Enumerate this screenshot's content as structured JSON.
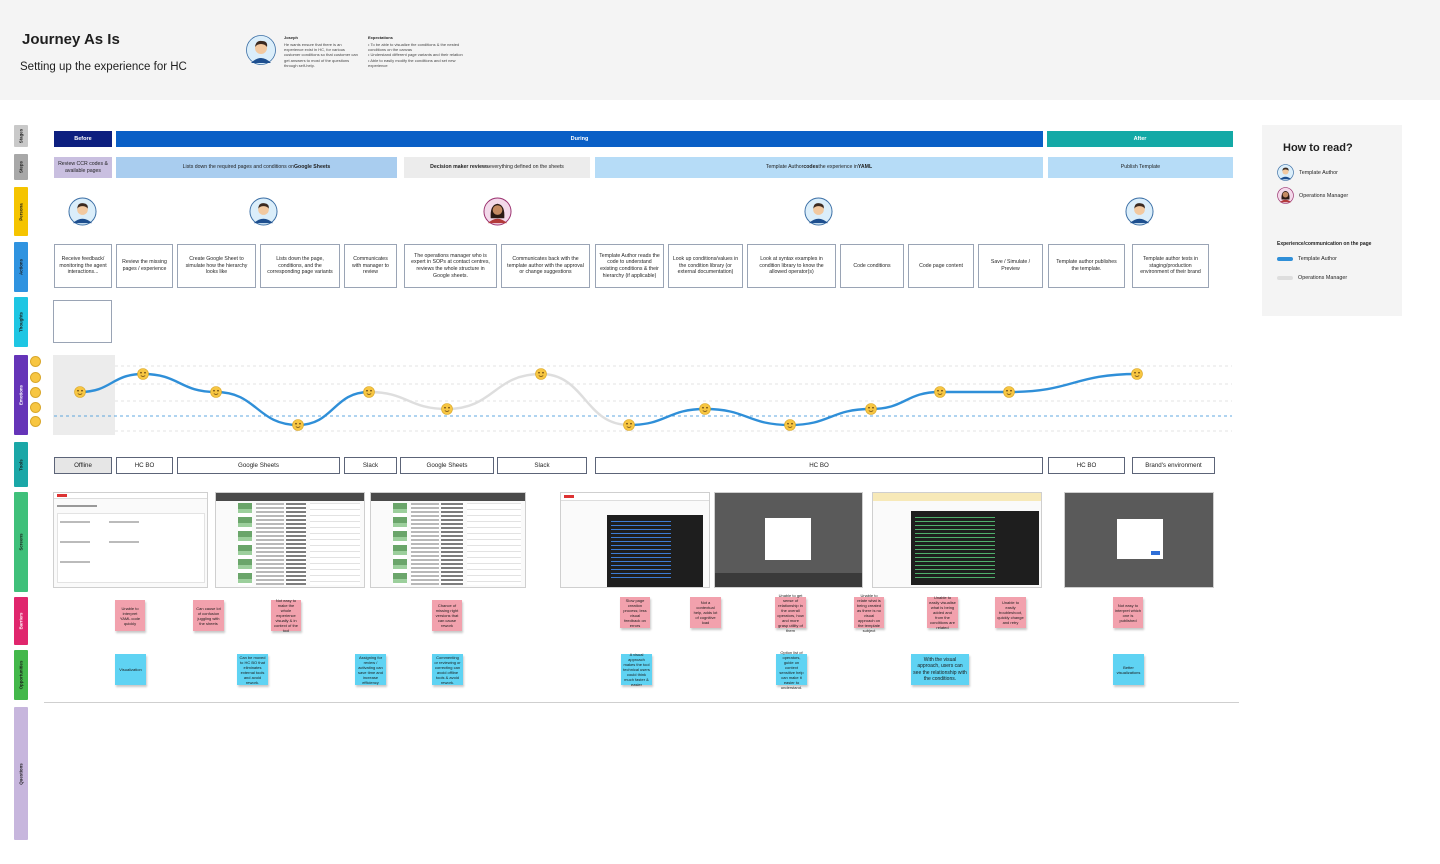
{
  "header": {
    "title": "Journey As Is",
    "subtitle": "Setting up the experience for HC",
    "persona_name": "Joseph",
    "persona_desc": "He wants ensure that there is an experience exist in HC, for various customer conditions so that customer can get answers to most of the questions through self-help.",
    "expectations_title": "Expectations",
    "expectations": [
      "To be able to visualize the conditions & the nested conditions on the canvas",
      "Understand different page variants and their relation",
      "Able to easily modify the conditions and set new experience"
    ]
  },
  "lanes": [
    {
      "label": "Stages",
      "color": "#c9c9c9"
    },
    {
      "label": "Steps",
      "color": "#a8a8a8"
    },
    {
      "label": "Persona",
      "color": "#f5c400"
    },
    {
      "label": "Actions",
      "color": "#2f93e0"
    },
    {
      "label": "Thoughts",
      "color": "#1ec6e3"
    },
    {
      "label": "Emotions",
      "color": "#6534b8"
    },
    {
      "label": "Tools",
      "color": "#1aa7a7"
    },
    {
      "label": "Screens",
      "color": "#3fc07a"
    },
    {
      "label": "Barriers",
      "color": "#e0266d"
    },
    {
      "label": "Opportunities",
      "color": "#43b84a"
    },
    {
      "label": "Questions",
      "color": "#c7b6dd"
    }
  ],
  "phases": [
    {
      "label": "Before",
      "color": "#0d1f7f"
    },
    {
      "label": "During",
      "color": "#0a5fc6"
    },
    {
      "label": "After",
      "color": "#14a9a6"
    }
  ],
  "steps": [
    {
      "text": "Review CCR codes & available pages"
    },
    {
      "pre": "",
      "bold": "",
      "post": "Lists down the required pages and conditions on ",
      "bold2": "Google Sheets"
    },
    {
      "pre": "",
      "bold": "Decision maker reviews",
      "post": " everything defined on the sheets",
      "bold2": ""
    },
    {
      "pre": "Template Author ",
      "bold": "codes",
      "post": " the experience in ",
      "bold2": "YAML"
    },
    {
      "text": "Publish Template"
    }
  ],
  "actions": [
    "Receive feedback/ monitoring the agent interactions...",
    "Review the missing pages / experience",
    "Create Google Sheet to simulate how the hierarchy looks like",
    "Lists down the page, conditions, and the corresponding page variants",
    "Communicates with manager to review",
    "The operations manager who is expert in SOPs at contact centres, reviews the whole structure in Google sheets.",
    "Communicates back with the template author with the approval or change suggestions",
    "Template Author reads the code to understand existing conditions & their hierarchy (if applicable)",
    "Look up conditions/values in the condition library (or external documentation)",
    "Look at syntax examples in condition library to know the allowed operator(s)",
    "Code conditions",
    "Code page content",
    "Save / Simulate / Preview",
    "Template author publishes the template.",
    "Template author tests in staging/production environment of their brand"
  ],
  "tools": [
    "Offline",
    "HC BO",
    "Google Sheets",
    "Slack",
    "Google Sheets",
    "Slack",
    "HC BO",
    "HC BO",
    "Brand's environment"
  ],
  "barriers": [
    "Unable to interpret YAML code quickly",
    "Can cause lot of confusion juggling with the sheets",
    "Not easy to make the whole experience visually & in context of the tool",
    "Chance of missing right versions that can cause rework",
    "Slow page creation process; less visual feedback on errors",
    "Not a contextual help, adds lot of cognitive load",
    "Unable to get sense of relationship in the overall operators, how and more grasp utility of them",
    "Unable to relate what is being created as there is no visual approach on the template subject",
    "Unable to easily visualise what is being added and from the conditions are related",
    "Unable to easily troubleshoot, quickly change and retry",
    "Not easy to interpret which one is published"
  ],
  "opportunities": [
    "Visualization",
    "Can be moved to HC BO that eliminates external tools and avoid rework.",
    "Assigning for review / activating can save time and increase efficiency",
    "Commenting or reviewing or correcting can avoid offline tools & avoid rework.",
    "A visual approach makes the tool technical users could think much faster & easier",
    "Option list of operators, guide on context sensitive help can make it easier to understand.",
    "With the visual approach, users can see the relationship with the conditions.",
    "Better visualizations"
  ],
  "emotion_levels": [
    3,
    4,
    3,
    1,
    3,
    2,
    4,
    1,
    2,
    1,
    2,
    3,
    3,
    4
  ],
  "howto": {
    "title": "How to read?",
    "persona1": "Template Author",
    "persona2": "Operations Manager",
    "legend_title": "Experience/communication on the page",
    "legend1": "Template Author",
    "legend2": "Operations Manager",
    "legend1_color": "#2f8fd8",
    "legend2_color": "#dedede"
  }
}
